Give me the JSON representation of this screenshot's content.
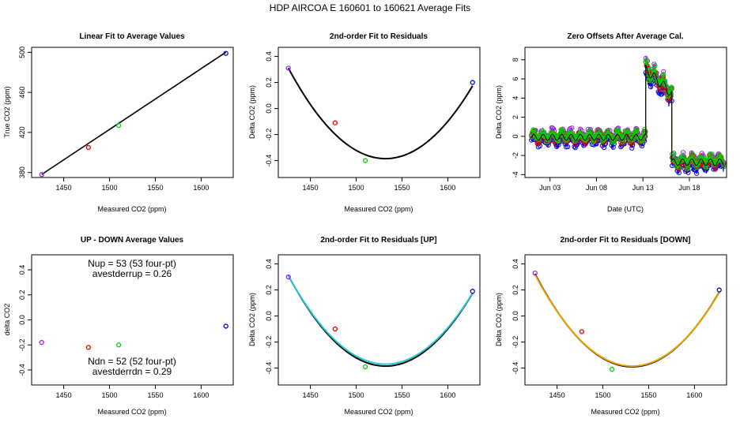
{
  "figure": {
    "title": "HDP   AIRCOA E   160601 to 160621   Average Fits"
  },
  "colors": {
    "axis": "#000000",
    "fit": "#000000",
    "fit_up": "#22c8d2",
    "fit_down": "#f0a000",
    "red": "#e00000",
    "green": "#00d000",
    "blue": "#0000e0",
    "purple": "#a020f0"
  },
  "chart_data": [
    {
      "id": "p1",
      "type": "scatter",
      "title": "Linear Fit to Average Values",
      "xlabel": "Measured CO2 (ppm)",
      "ylabel": "True CO2 (ppm)",
      "xlim": [
        1415,
        1635
      ],
      "ylim": [
        375,
        505
      ],
      "xticks": [
        1450,
        1500,
        1550,
        1600
      ],
      "yticks": [
        380,
        420,
        460,
        500
      ],
      "points": [
        {
          "x": 1426,
          "y": 378,
          "color": "purple"
        },
        {
          "x": 1477,
          "y": 405,
          "color": "red"
        },
        {
          "x": 1510,
          "y": 427,
          "color": "green"
        },
        {
          "x": 1627,
          "y": 499,
          "color": "blue"
        }
      ],
      "fit": {
        "type": "linear",
        "slope": 0.6074,
        "intercept": -488.1,
        "from": 1426,
        "to": 1627,
        "color": "fit"
      }
    },
    {
      "id": "p2",
      "type": "scatter",
      "title": "2nd-order Fit to Residuals",
      "xlabel": "Measured CO2 (ppm)",
      "ylabel": "Delta CO2 (ppm)",
      "xlim": [
        1415,
        1635
      ],
      "ylim": [
        -0.53,
        0.47
      ],
      "xticks": [
        1450,
        1500,
        1550,
        1600
      ],
      "yticks": [
        -0.4,
        -0.2,
        0.0,
        0.2,
        0.4
      ],
      "yticklabels": [
        "-0.4",
        "-0.2",
        "0.0",
        "0.2",
        "0.4"
      ],
      "points": [
        {
          "x": 1426,
          "y": 0.31,
          "color": "purple"
        },
        {
          "x": 1477,
          "y": -0.11,
          "color": "red"
        },
        {
          "x": 1510,
          "y": -0.4,
          "color": "green"
        },
        {
          "x": 1627,
          "y": 0.2,
          "color": "blue"
        }
      ],
      "fits": [
        {
          "type": "quadratic",
          "vertex_x": 1532,
          "vertex_y": -0.385,
          "a": 6.19e-05,
          "from": 1426,
          "to": 1627,
          "color": "fit"
        }
      ]
    },
    {
      "id": "p3",
      "type": "line",
      "title": "Zero Offsets After Average Cal.",
      "xlabel": "Date (UTC)",
      "ylabel": "Delta CO2 (ppm)",
      "xlim": [
        0.3,
        22.0
      ],
      "ylim": [
        -4.3,
        9.3
      ],
      "xticks": [
        3,
        8,
        13,
        18
      ],
      "xticklabels": [
        "Jun 03",
        "Jun 08",
        "Jun 13",
        "Jun 18"
      ],
      "yticks": [
        -4,
        -2,
        0,
        2,
        4,
        6,
        8
      ],
      "yticklabels": [
        "-4",
        "-2",
        "0",
        "2",
        "4",
        "6",
        "8"
      ],
      "segments": [
        {
          "start": 1.0,
          "end": 13.3,
          "base": -0.1,
          "jitter": 0.9
        },
        {
          "start": 13.3,
          "end": 16.1,
          "base": 7.0,
          "jitter": 1.4
        },
        {
          "start": 16.1,
          "end": 21.7,
          "base": -2.7,
          "jitter": 1.0
        }
      ],
      "series": [
        {
          "name": "blue",
          "color": "blue",
          "offset": -0.4
        },
        {
          "name": "purple",
          "color": "purple",
          "offset": 0.3
        },
        {
          "name": "red",
          "color": "red",
          "offset": 0.0
        },
        {
          "name": "green",
          "color": "green",
          "offset": 0.15
        }
      ]
    },
    {
      "id": "p4",
      "type": "scatter",
      "title": "UP - DOWN Average Values",
      "xlabel": "Measured CO2 (ppm)",
      "ylabel": "delta CO2",
      "xlim": [
        1415,
        1635
      ],
      "ylim": [
        -0.52,
        0.52
      ],
      "xticks": [
        1450,
        1500,
        1550,
        1600
      ],
      "yticks": [
        -0.4,
        -0.2,
        0.0,
        0.2,
        0.4
      ],
      "yticklabels": [
        "-0.4",
        "-0.2",
        "0.0",
        "0.2",
        "0.4"
      ],
      "points": [
        {
          "x": 1426,
          "y": -0.18,
          "color": "purple"
        },
        {
          "x": 1477,
          "y": -0.22,
          "color": "red"
        },
        {
          "x": 1510,
          "y": -0.2,
          "color": "green"
        },
        {
          "x": 1627,
          "y": -0.05,
          "color": "blue"
        }
      ],
      "annotations": {
        "up_line1": "Nup = 53 (53 four-pt)",
        "up_line2": "avestderrup =  0.26",
        "dn_line1": "Ndn = 52 (52 four-pt)",
        "dn_line2": "avestderrdn =  0.29"
      }
    },
    {
      "id": "p5",
      "type": "scatter",
      "title": "2nd-order Fit to Residuals [UP]",
      "xlabel": "Measured CO2 (ppm)",
      "ylabel": "Delta CO2 (ppm)",
      "xlim": [
        1415,
        1635
      ],
      "ylim": [
        -0.53,
        0.47
      ],
      "xticks": [
        1450,
        1500,
        1550,
        1600
      ],
      "yticks": [
        -0.4,
        -0.2,
        0.0,
        0.2,
        0.4
      ],
      "yticklabels": [
        "-0.4",
        "-0.2",
        "0.0",
        "0.2",
        "0.4"
      ],
      "points": [
        {
          "x": 1426,
          "y": 0.3,
          "color": "purple"
        },
        {
          "x": 1477,
          "y": -0.1,
          "color": "red"
        },
        {
          "x": 1510,
          "y": -0.39,
          "color": "green"
        },
        {
          "x": 1627,
          "y": 0.19,
          "color": "blue"
        }
      ],
      "fits": [
        {
          "type": "quadratic",
          "vertex_x": 1532,
          "vertex_y": -0.385,
          "a": 6.19e-05,
          "from": 1426,
          "to": 1627,
          "color": "fit"
        },
        {
          "type": "quadratic",
          "vertex_x": 1532,
          "vertex_y": -0.37,
          "a": 6.05e-05,
          "from": 1426,
          "to": 1627,
          "color": "fit_up"
        }
      ]
    },
    {
      "id": "p6",
      "type": "scatter",
      "title": "2nd-order Fit to Residuals [DOWN]",
      "xlabel": "Measured CO2 (ppm)",
      "ylabel": "Delta CO2 (ppm)",
      "xlim": [
        1415,
        1635
      ],
      "ylim": [
        -0.53,
        0.47
      ],
      "xticks": [
        1450,
        1500,
        1550,
        1600
      ],
      "yticks": [
        -0.4,
        -0.2,
        0.0,
        0.2,
        0.4
      ],
      "yticklabels": [
        "-0.4",
        "-0.2",
        "0.0",
        "0.2",
        "0.4"
      ],
      "points": [
        {
          "x": 1426,
          "y": 0.33,
          "color": "purple"
        },
        {
          "x": 1477,
          "y": -0.12,
          "color": "red"
        },
        {
          "x": 1510,
          "y": -0.41,
          "color": "green"
        },
        {
          "x": 1627,
          "y": 0.2,
          "color": "blue"
        }
      ],
      "fits": [
        {
          "type": "quadratic",
          "vertex_x": 1532,
          "vertex_y": -0.39,
          "a": 6.35e-05,
          "from": 1426,
          "to": 1627,
          "color": "fit"
        },
        {
          "type": "quadratic",
          "vertex_x": 1532,
          "vertex_y": -0.385,
          "a": 6.25e-05,
          "from": 1426,
          "to": 1627,
          "color": "fit_down"
        }
      ]
    }
  ]
}
